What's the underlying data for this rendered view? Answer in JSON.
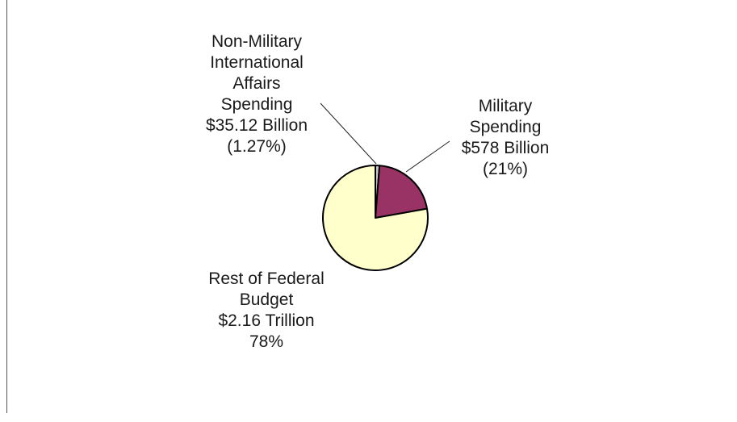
{
  "chart_data": {
    "type": "pie",
    "title": "",
    "slices": [
      {
        "label_lines": [
          "Non-Military",
          "International",
          "Affairs",
          "Spending",
          "$35.12 Billion",
          "(1.27%)"
        ],
        "percent": 1.27,
        "value": "$35.12 Billion",
        "color": "#c8c8c8"
      },
      {
        "label_lines": [
          "Military",
          "Spending",
          "$578 Billion",
          "(21%)"
        ],
        "percent": 21,
        "value": "$578 Billion",
        "color": "#993366"
      },
      {
        "label_lines": [
          "Rest of Federal",
          "Budget",
          "$2.16 Trillion",
          "78%"
        ],
        "percent": 78,
        "value": "$2.16 Trillion",
        "color": "#ffffcc"
      }
    ],
    "start_angle_deg": 0,
    "direction": "clockwise",
    "legend": "none",
    "leader_lines": true
  }
}
